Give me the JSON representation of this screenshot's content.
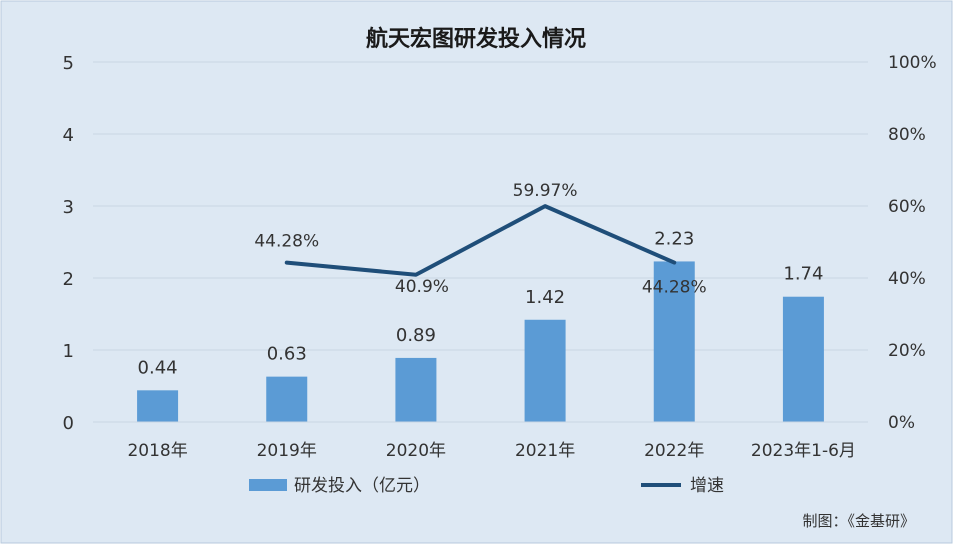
{
  "chart_data": {
    "type": "bar",
    "title": "航天宏图研发投入情况",
    "categories": [
      "2018年",
      "2019年",
      "2020年",
      "2021年",
      "2022年",
      "2023年1-6月"
    ],
    "series": [
      {
        "name": "研发投入（亿元）",
        "type": "bar",
        "axis": "left",
        "values": [
          0.44,
          0.63,
          0.89,
          1.42,
          2.23,
          1.74
        ],
        "labels": [
          "0.44",
          "0.63",
          "0.89",
          "1.42",
          "2.23",
          "1.74"
        ],
        "color": "#5b9bd5"
      },
      {
        "name": "增速",
        "type": "line",
        "axis": "right",
        "values": [
          null,
          44.28,
          40.9,
          59.97,
          44.28,
          null
        ],
        "labels": [
          "",
          "44.28%",
          "40.9%",
          "59.97%",
          "44.28%",
          ""
        ],
        "color": "#1f4e79"
      }
    ],
    "y_left": {
      "ylim": [
        0,
        5
      ],
      "ticks": [
        "0",
        "1",
        "2",
        "3",
        "4",
        "5"
      ]
    },
    "y_right": {
      "ylim": [
        0,
        100
      ],
      "ticks": [
        "0%",
        "20%",
        "40%",
        "60%",
        "80%",
        "100%"
      ]
    },
    "grid": true,
    "legend": "bottom",
    "background": "#dde8f3",
    "border": "#b7c9dc"
  },
  "footer": {
    "source": "制图：《金基研》"
  }
}
